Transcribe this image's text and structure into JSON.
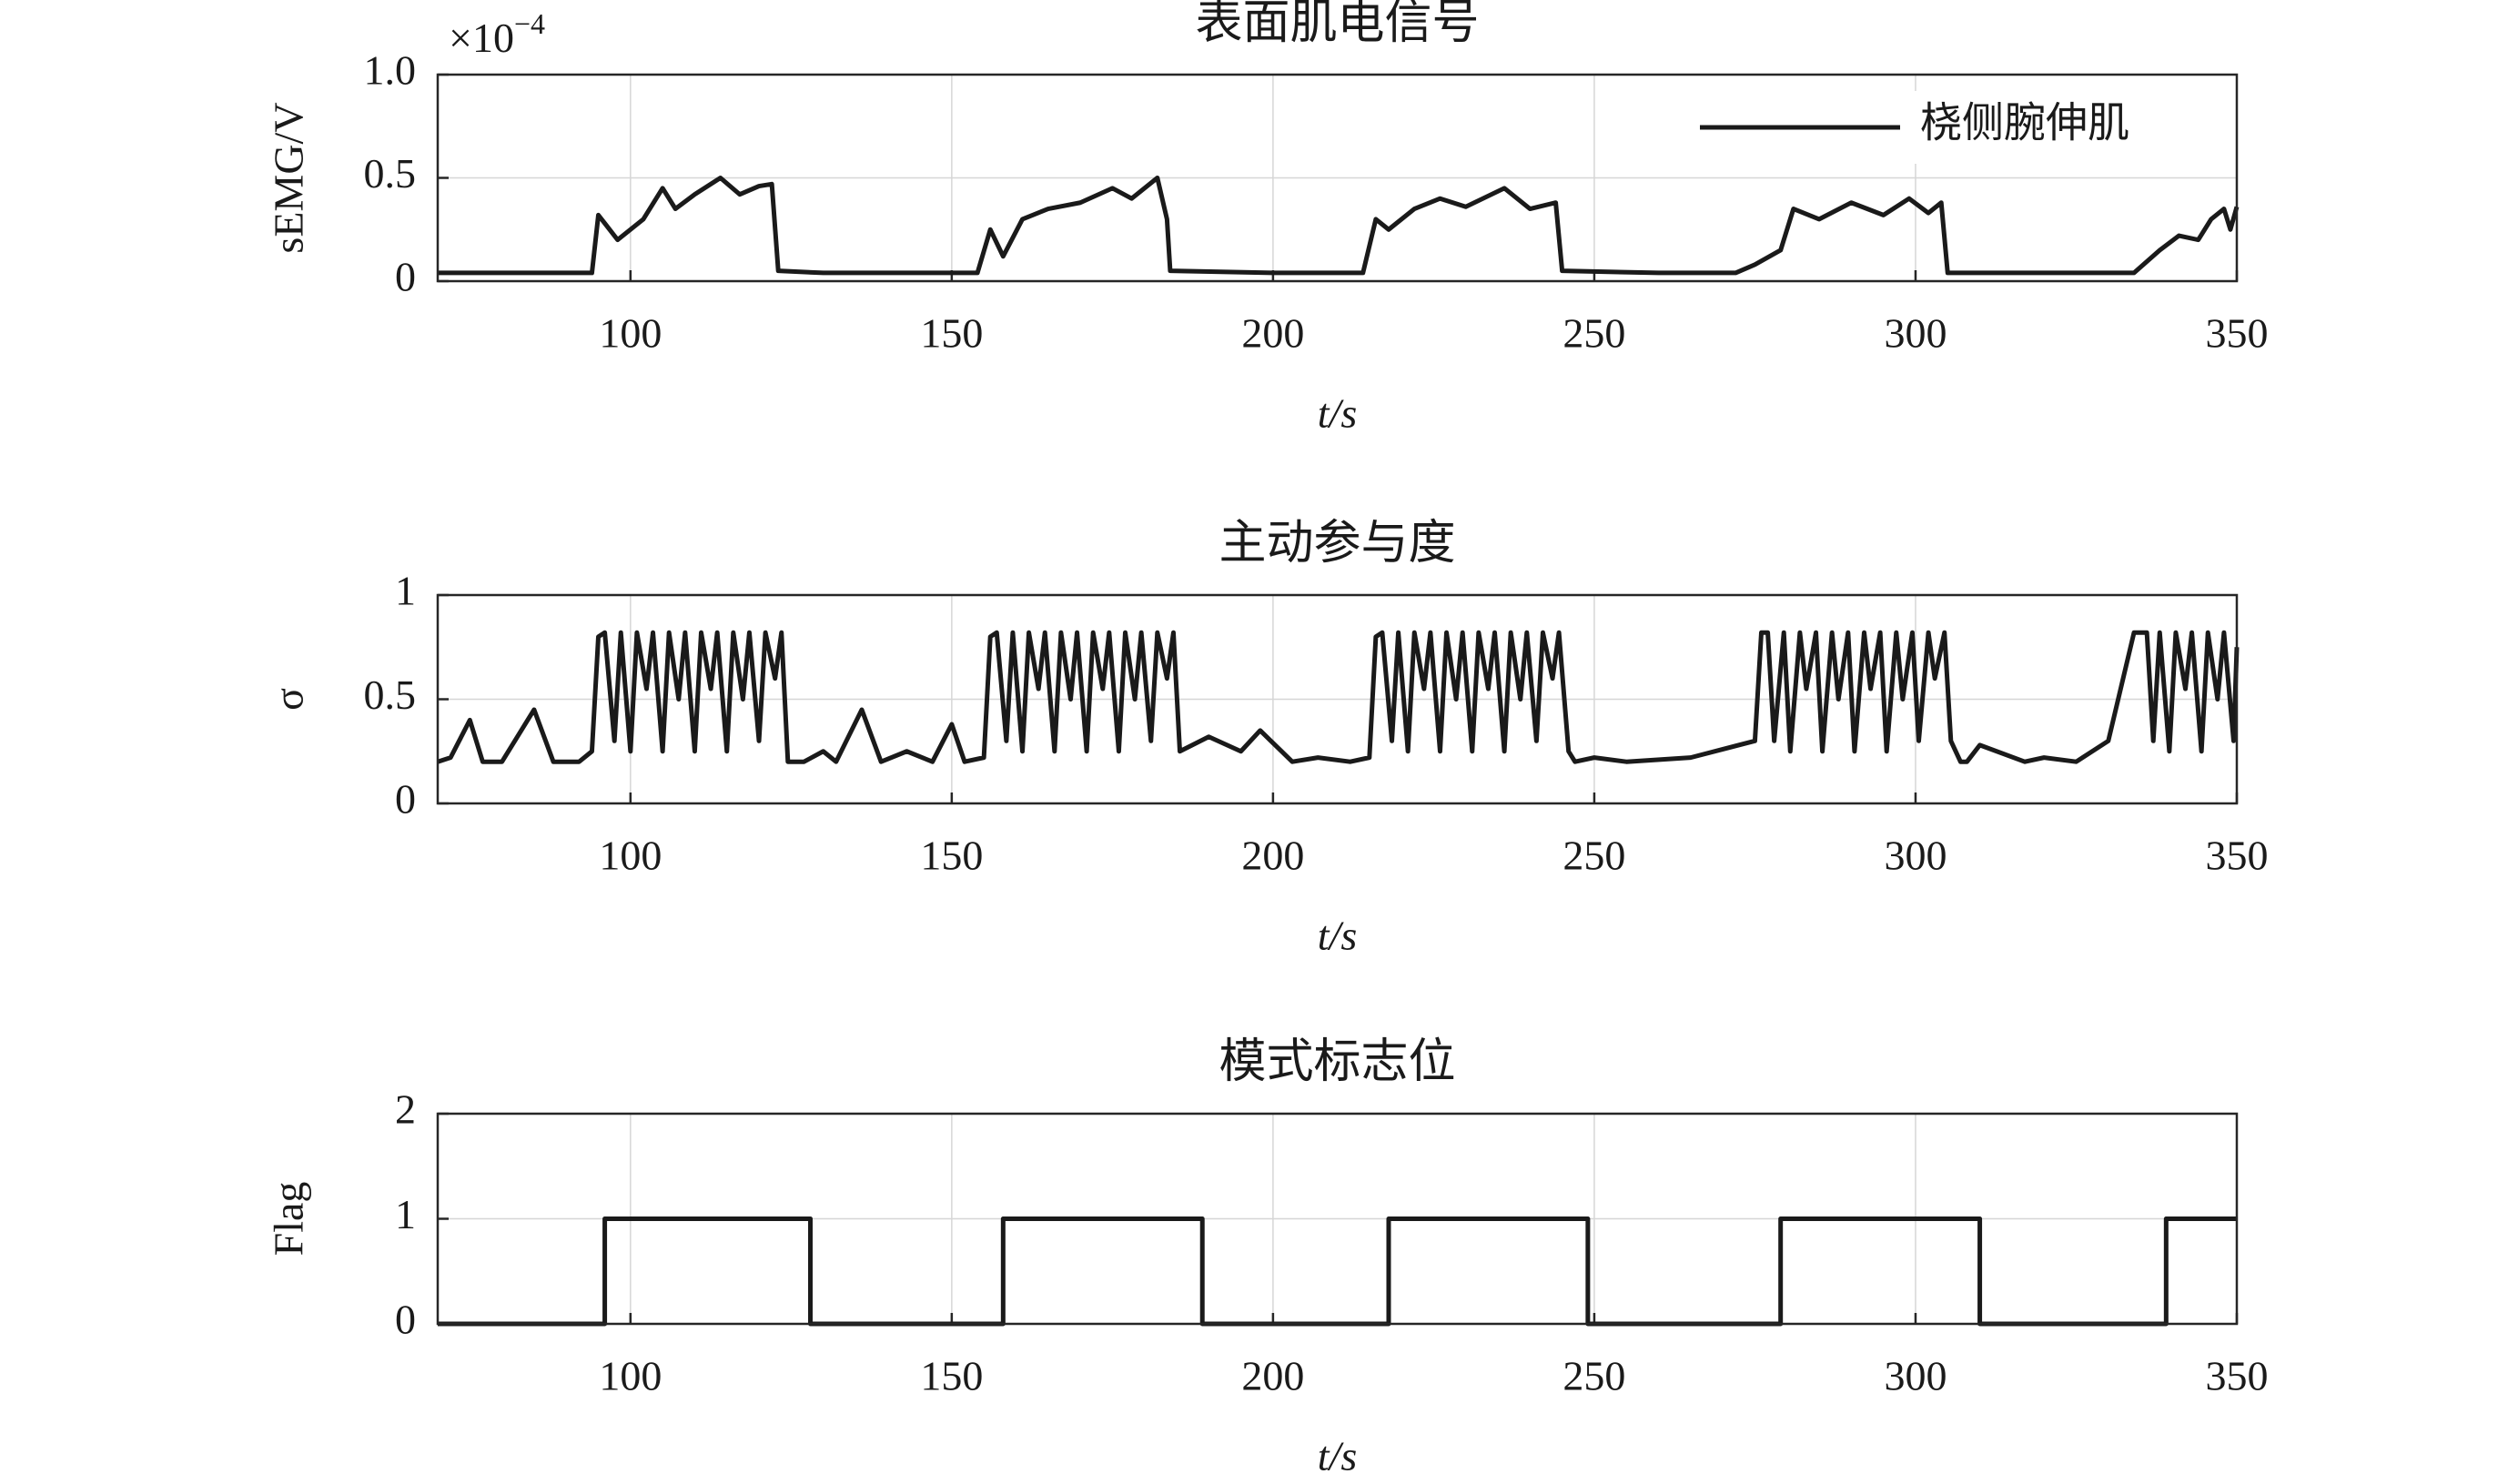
{
  "chart_data": [
    {
      "type": "line",
      "title": "表面肌电信号",
      "x_label": "t/s",
      "y_label": "sEMG/V",
      "y_multiplier": {
        "base": "×10",
        "exponent": "−4"
      },
      "xlim": [
        70,
        350
      ],
      "xticks": [
        100,
        150,
        200,
        250,
        300,
        350
      ],
      "ylim": [
        0,
        1
      ],
      "yticks": [
        0,
        0.5,
        {
          "value": 1,
          "label": "1.0"
        }
      ],
      "grid": true,
      "legend": "upper right",
      "x": [
        70,
        94,
        95,
        96,
        98,
        102,
        105,
        107,
        110,
        114,
        117,
        120,
        122,
        123,
        130,
        154,
        156,
        158,
        161,
        165,
        170,
        175,
        178,
        182,
        183.5,
        184,
        200,
        214,
        216,
        218,
        222,
        226,
        230,
        236,
        240,
        244,
        245,
        260,
        272,
        275,
        279,
        281,
        285,
        290,
        295,
        299,
        302,
        304,
        305,
        320,
        334,
        338,
        341,
        344,
        346,
        348,
        349,
        350
      ],
      "series": [
        {
          "name": "桡侧腕伸肌",
          "color": "#1a1a1a",
          "values": [
            0.04,
            0.04,
            0.32,
            0.28,
            0.2,
            0.3,
            0.45,
            0.35,
            0.42,
            0.5,
            0.42,
            0.46,
            0.47,
            0.05,
            0.04,
            0.04,
            0.25,
            0.12,
            0.3,
            0.35,
            0.38,
            0.45,
            0.4,
            0.5,
            0.3,
            0.05,
            0.04,
            0.04,
            0.3,
            0.25,
            0.35,
            0.4,
            0.36,
            0.45,
            0.35,
            0.38,
            0.05,
            0.04,
            0.04,
            0.08,
            0.15,
            0.35,
            0.3,
            0.38,
            0.32,
            0.4,
            0.33,
            0.38,
            0.04,
            0.04,
            0.04,
            0.15,
            0.22,
            0.2,
            0.3,
            0.35,
            0.25,
            0.36
          ]
        }
      ]
    },
    {
      "type": "line",
      "title": "主动参与度",
      "x_label": "t/s",
      "y_label": "σ",
      "xlim": [
        70,
        350
      ],
      "xticks": [
        100,
        150,
        200,
        250,
        300,
        350
      ],
      "ylim": [
        0,
        1
      ],
      "yticks": [
        0,
        0.5,
        1
      ],
      "grid": true,
      "x": [
        70,
        72,
        75,
        77,
        80,
        85,
        88,
        92,
        94,
        95,
        96,
        97.5,
        98.5,
        100,
        101,
        102.5,
        103.5,
        105,
        106,
        107.5,
        108.5,
        110,
        111,
        112.5,
        113.5,
        115,
        116,
        117.5,
        118.5,
        120,
        121,
        122.5,
        123.5,
        124.5,
        127,
        130,
        132,
        136,
        139,
        143,
        147,
        150,
        152,
        155,
        156,
        157,
        158.5,
        159.5,
        161,
        162,
        163.5,
        164.5,
        166,
        167,
        168.5,
        169.5,
        171,
        172,
        173.5,
        174.5,
        176,
        177,
        178.5,
        179.5,
        181,
        182,
        183.5,
        184.5,
        185.5,
        190,
        195,
        198,
        203,
        207,
        212,
        215,
        216,
        217,
        218.5,
        219.5,
        221,
        222,
        223.5,
        224.5,
        226,
        227,
        228.5,
        229.5,
        231,
        232,
        233.5,
        234.5,
        236,
        237,
        238.5,
        239.5,
        241,
        242,
        243.5,
        244.5,
        246,
        247,
        250,
        255,
        265,
        275,
        276,
        277,
        278,
        279.5,
        280.5,
        282,
        283,
        284.5,
        285.5,
        287,
        288,
        289.5,
        290.5,
        292,
        293,
        294.5,
        295.5,
        297,
        298,
        299.5,
        300.5,
        302,
        303,
        304.5,
        305.5,
        307,
        308,
        310,
        317,
        320,
        325,
        330,
        334,
        336,
        337,
        338,
        339.5,
        340.5,
        342,
        343,
        344.5,
        345.5,
        347,
        348,
        349.5,
        350
      ],
      "series": [
        {
          "color": "#1a1a1a",
          "values": [
            0.2,
            0.22,
            0.4,
            0.2,
            0.2,
            0.45,
            0.2,
            0.2,
            0.25,
            0.8,
            0.82,
            0.3,
            0.82,
            0.25,
            0.82,
            0.55,
            0.82,
            0.25,
            0.82,
            0.5,
            0.82,
            0.25,
            0.82,
            0.55,
            0.82,
            0.25,
            0.82,
            0.5,
            0.82,
            0.3,
            0.82,
            0.6,
            0.82,
            0.2,
            0.2,
            0.25,
            0.2,
            0.45,
            0.2,
            0.25,
            0.2,
            0.38,
            0.2,
            0.22,
            0.8,
            0.82,
            0.3,
            0.82,
            0.25,
            0.82,
            0.55,
            0.82,
            0.25,
            0.82,
            0.5,
            0.82,
            0.25,
            0.82,
            0.55,
            0.82,
            0.25,
            0.82,
            0.5,
            0.82,
            0.3,
            0.82,
            0.6,
            0.82,
            0.25,
            0.32,
            0.25,
            0.35,
            0.2,
            0.22,
            0.2,
            0.22,
            0.8,
            0.82,
            0.3,
            0.82,
            0.25,
            0.82,
            0.55,
            0.82,
            0.25,
            0.82,
            0.5,
            0.82,
            0.25,
            0.82,
            0.55,
            0.82,
            0.25,
            0.82,
            0.5,
            0.82,
            0.3,
            0.82,
            0.6,
            0.82,
            0.25,
            0.2,
            0.22,
            0.2,
            0.22,
            0.3,
            0.82,
            0.82,
            0.3,
            0.82,
            0.25,
            0.82,
            0.55,
            0.82,
            0.25,
            0.82,
            0.5,
            0.82,
            0.25,
            0.82,
            0.55,
            0.82,
            0.25,
            0.82,
            0.5,
            0.82,
            0.3,
            0.82,
            0.6,
            0.82,
            0.3,
            0.2,
            0.2,
            0.28,
            0.2,
            0.22,
            0.2,
            0.3,
            0.82,
            0.82,
            0.3,
            0.82,
            0.25,
            0.82,
            0.55,
            0.82,
            0.25,
            0.82,
            0.5,
            0.82,
            0.3,
            0.75
          ]
        }
      ]
    },
    {
      "type": "line",
      "title": "模式标志位",
      "x_label": "t/s",
      "y_label": "Flag",
      "xlim": [
        70,
        350
      ],
      "xticks": [
        100,
        150,
        200,
        250,
        300,
        350
      ],
      "ylim": [
        0,
        2
      ],
      "yticks": [
        0,
        1,
        2
      ],
      "grid": true,
      "x": [
        70,
        96,
        96,
        128,
        128,
        158,
        158,
        189,
        189,
        218,
        218,
        249,
        249,
        279,
        279,
        310,
        310,
        339,
        339,
        350
      ],
      "series": [
        {
          "color": "#1a1a1a",
          "values": [
            0,
            0,
            1,
            1,
            0,
            0,
            1,
            1,
            0,
            0,
            1,
            1,
            0,
            0,
            1,
            1,
            0,
            0,
            1,
            1
          ]
        }
      ]
    }
  ]
}
